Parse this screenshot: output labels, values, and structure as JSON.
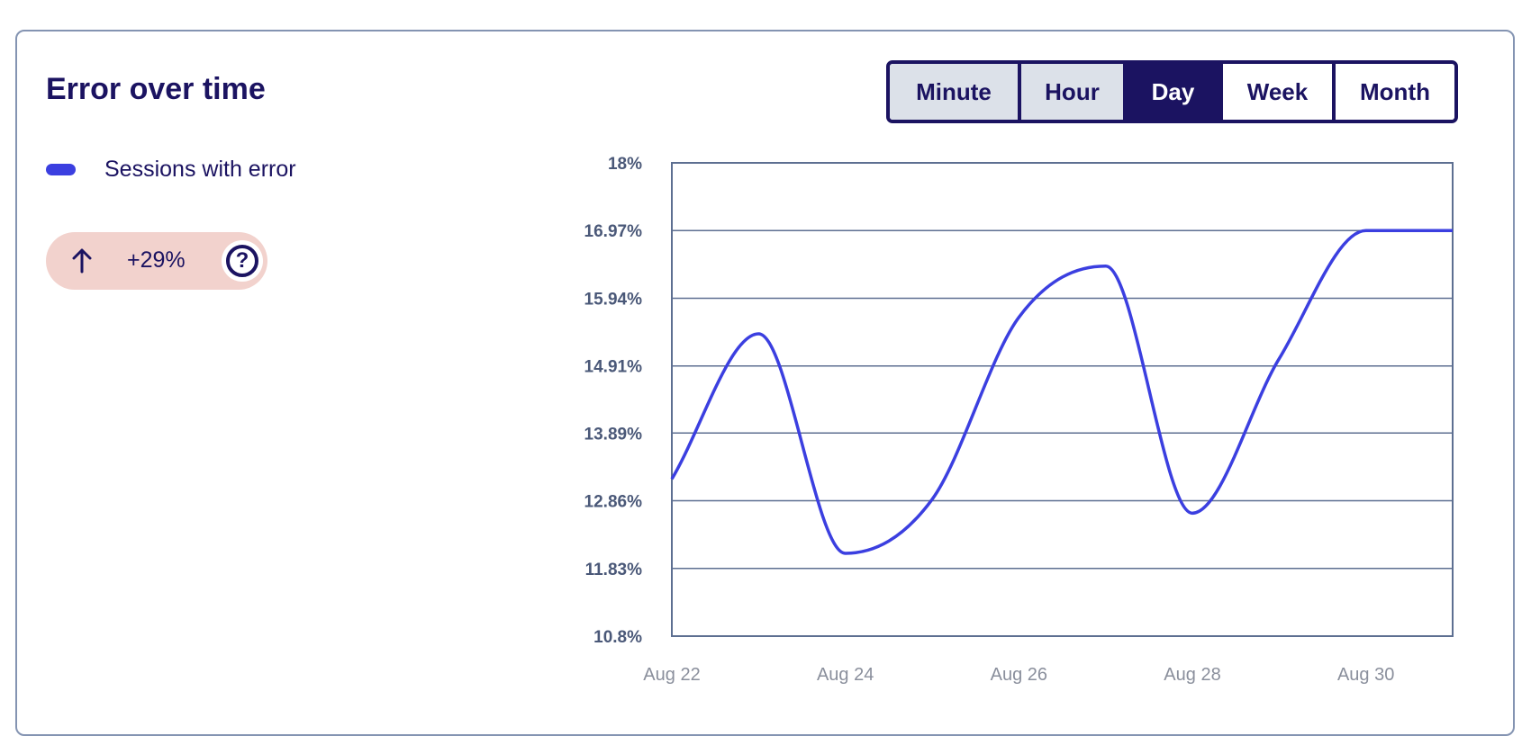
{
  "title": "Error over time",
  "legend": {
    "label": "Sessions with error",
    "color": "#3b3fe0"
  },
  "badge": {
    "icon": "arrow-up-icon",
    "value": "+29%",
    "help_icon": "question-circle-icon",
    "bg": "#f2d2cd"
  },
  "granularity": {
    "options": [
      "Minute",
      "Hour",
      "Day",
      "Week",
      "Month"
    ],
    "selected": "Day"
  },
  "chart_data": {
    "type": "line",
    "title": "Error over time",
    "xlabel": "",
    "ylabel": "",
    "x": [
      "Aug 22",
      "Aug 23",
      "Aug 24",
      "Aug 25",
      "Aug 26",
      "Aug 27",
      "Aug 28",
      "Aug 29",
      "Aug 30",
      "Aug 31"
    ],
    "series": [
      {
        "name": "Sessions with error",
        "color": "#3b3fe0",
        "values": [
          13.19,
          15.4,
          12.06,
          12.88,
          15.65,
          16.43,
          12.67,
          15.02,
          16.97,
          16.97
        ]
      }
    ],
    "ylim": [
      10.8,
      18
    ],
    "yticks": [
      10.8,
      11.83,
      12.86,
      13.89,
      14.91,
      15.94,
      16.97,
      18
    ],
    "ytick_labels": [
      "10.8%",
      "11.83%",
      "12.86%",
      "13.89%",
      "14.91%",
      "15.94%",
      "16.97%",
      "18%"
    ],
    "xtick_labels": [
      "Aug 22",
      "Aug 24",
      "Aug 26",
      "Aug 28",
      "Aug 30"
    ],
    "xtick_indices": [
      0,
      2,
      4,
      6,
      8
    ],
    "grid": true,
    "legend_position": "top-left"
  }
}
